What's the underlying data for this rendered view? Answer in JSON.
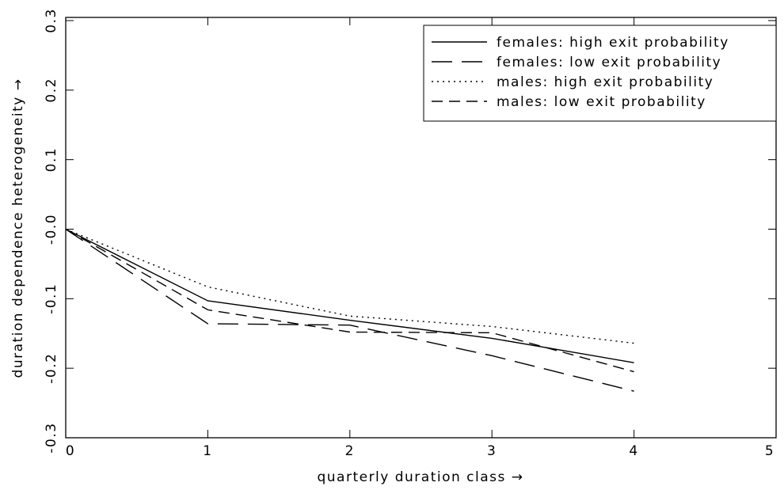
{
  "chart_data": {
    "type": "line",
    "x_label": "quarterly duration class →",
    "y_label": "duration dependence heterogeneity →",
    "x": [
      0,
      1,
      2,
      3,
      4
    ],
    "series": [
      {
        "name": "females: high exit probability",
        "color": "#000000",
        "style": "solid",
        "values": [
          0,
          -0.103,
          -0.131,
          -0.157,
          -0.192
        ]
      },
      {
        "name": "females: low exit probability",
        "color": "#000000",
        "style": "long-dash",
        "values": [
          0,
          -0.136,
          -0.138,
          -0.182,
          -0.233
        ]
      },
      {
        "name": "males: high exit probability",
        "color": "#000000",
        "style": "dotted",
        "values": [
          0,
          -0.083,
          -0.125,
          -0.14,
          -0.164
        ]
      },
      {
        "name": "males: low exit probability",
        "color": "#000000",
        "style": "dashed",
        "values": [
          0,
          -0.116,
          -0.148,
          -0.149,
          -0.205
        ]
      }
    ],
    "xlim": [
      0,
      5
    ],
    "xticks": [
      0,
      1,
      2,
      3,
      4,
      5
    ],
    "ylim": [
      -0.3,
      0.3
    ],
    "yticks": [
      -0.3,
      -0.2,
      -0.1,
      {
        "value": 0,
        "label": "-0.0"
      },
      0.1,
      0.2,
      0.3
    ],
    "legend": "upper right"
  }
}
